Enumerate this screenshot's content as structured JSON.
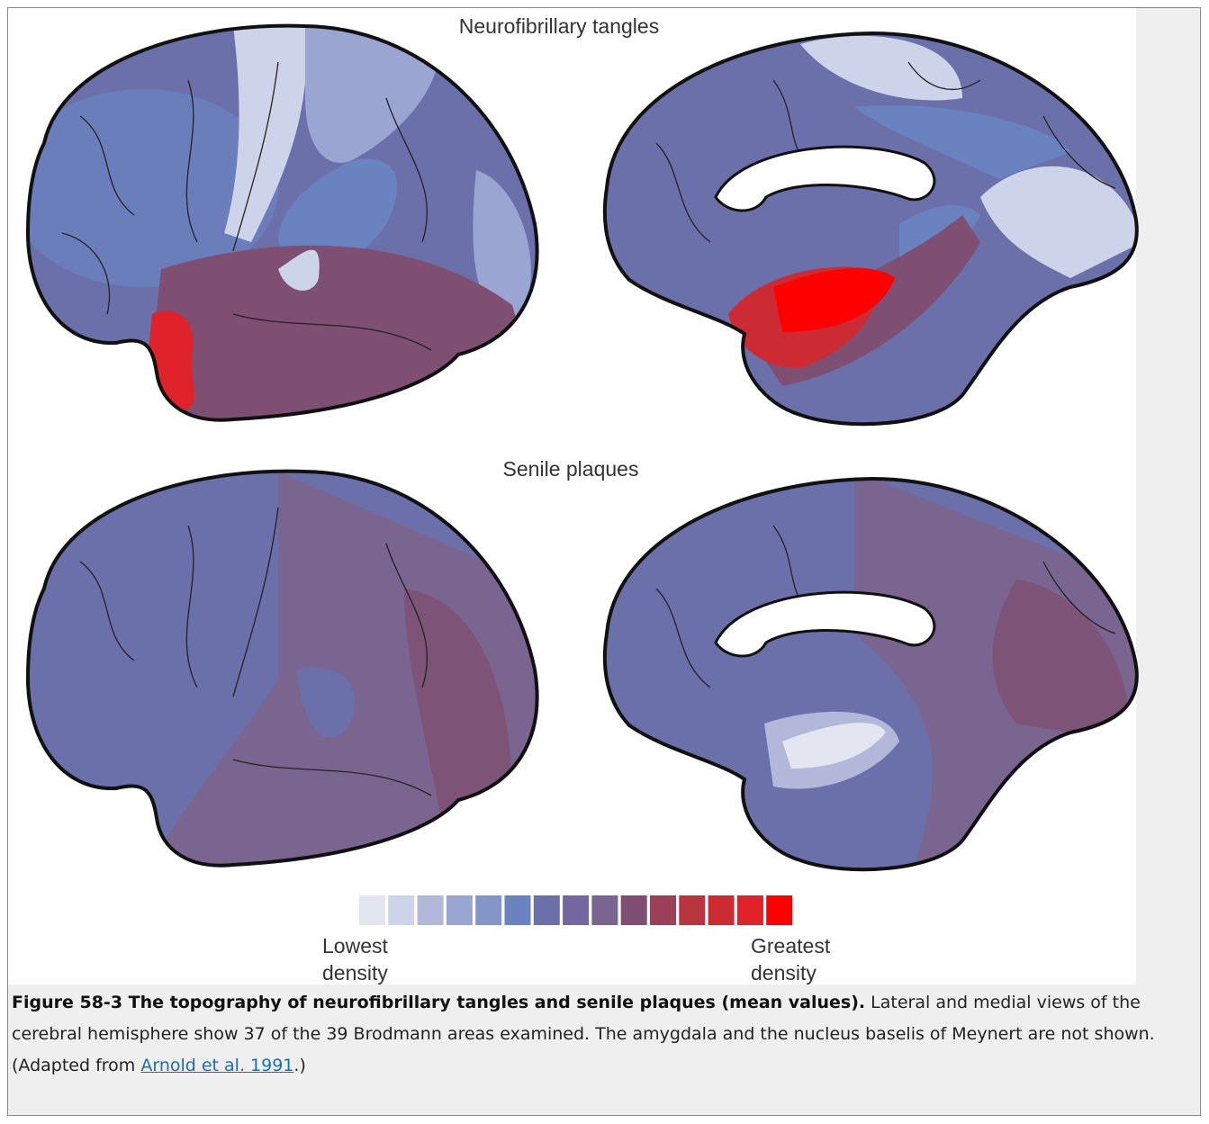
{
  "figure": {
    "titles": [
      "Neurofibrillary tangles",
      "Senile plaques"
    ],
    "legend": {
      "colors": [
        "#e3e6f0",
        "#cdd3e8",
        "#b3b7da",
        "#9aa5d2",
        "#8595c8",
        "#6b82c0",
        "#6b70aa",
        "#72679e",
        "#7a6590",
        "#7e4f72",
        "#9b4058",
        "#b8343f",
        "#cc2b34",
        "#e0222a",
        "#ff0000"
      ],
      "low_label": [
        "Lowest",
        "density"
      ],
      "high_label": [
        "Greatest",
        "density"
      ]
    }
  },
  "caption": {
    "title": "Figure 58-3 The topography of neurofibrillary tangles and senile plaques (mean values).",
    "text": " Lateral and medial views of the cerebral hemisphere show 37 of the 39 Brodmann areas examined. The amygdala and the nucleus baselis of Meynert are not shown. (Adapted from ",
    "link": "Arnold et al. 1991",
    "text_after": ".)"
  }
}
